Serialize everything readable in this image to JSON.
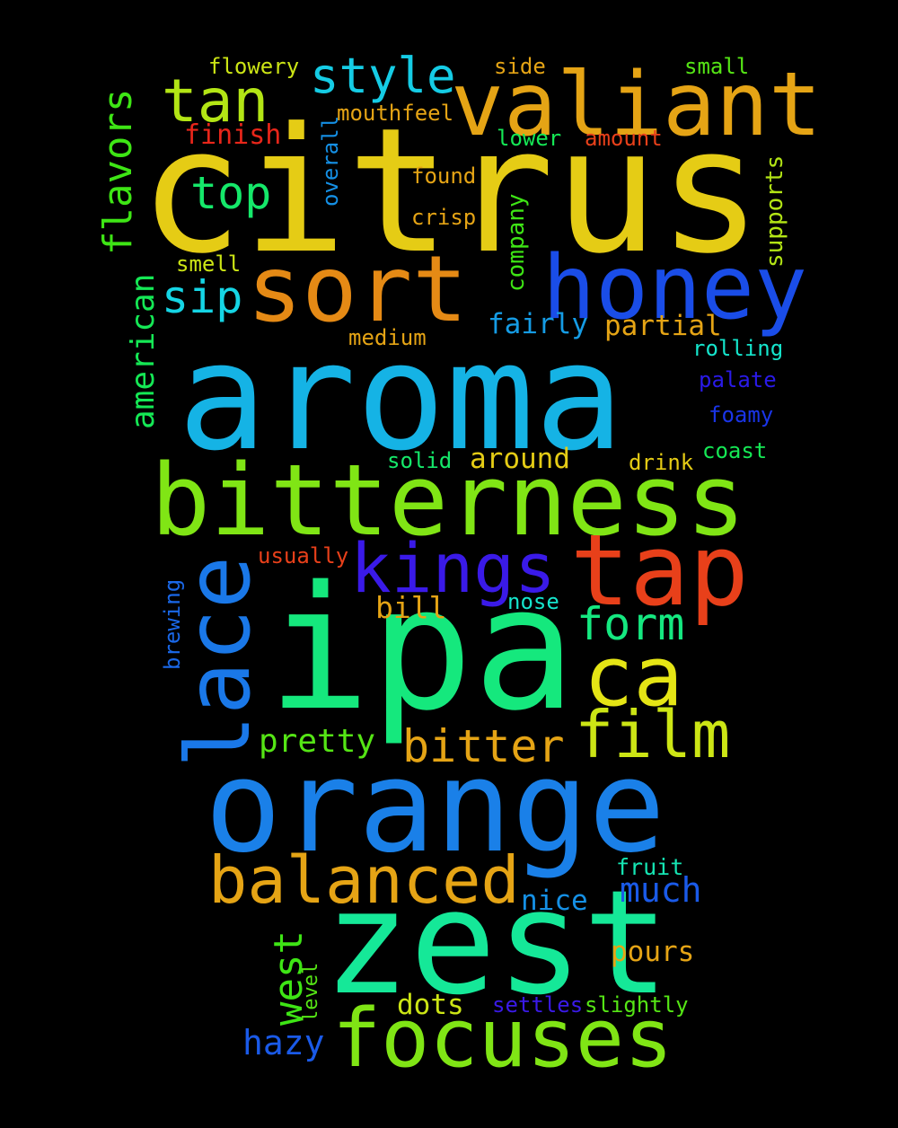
{
  "words": [
    {
      "text": "citrus",
      "color": "#e5cc15"
    },
    {
      "text": "aroma",
      "color": "#15b3e5"
    },
    {
      "text": "ipa",
      "color": "#15e87d"
    },
    {
      "text": "orange",
      "color": "#1a80e8"
    },
    {
      "text": "zest",
      "color": "#15e898"
    },
    {
      "text": "bitterness",
      "color": "#80e515"
    },
    {
      "text": "valiant",
      "color": "#e5a415"
    },
    {
      "text": "honey",
      "color": "#1a4de8"
    },
    {
      "text": "sort",
      "color": "#e58a15"
    },
    {
      "text": "tap",
      "color": "#e8401a"
    },
    {
      "text": "focuses",
      "color": "#80e515"
    },
    {
      "text": "lace",
      "color": "#1a78e8"
    },
    {
      "text": "kings",
      "color": "#3a1ae8"
    },
    {
      "text": "ca",
      "color": "#e5e515"
    },
    {
      "text": "film",
      "color": "#cce515"
    },
    {
      "text": "balanced",
      "color": "#e5a415"
    },
    {
      "text": "tan",
      "color": "#b3e515"
    },
    {
      "text": "style",
      "color": "#15cce5"
    },
    {
      "text": "bitter",
      "color": "#e5a415"
    },
    {
      "text": "top",
      "color": "#15e86a"
    },
    {
      "text": "form",
      "color": "#15e880"
    },
    {
      "text": "sip",
      "color": "#15d5e5"
    },
    {
      "text": "flavors",
      "color": "#3ee515"
    },
    {
      "text": "american",
      "color": "#15e855"
    },
    {
      "text": "west",
      "color": "#3ee515"
    },
    {
      "text": "much",
      "color": "#1a5ae8"
    },
    {
      "text": "hazy",
      "color": "#1a5ae8"
    },
    {
      "text": "pretty",
      "color": "#55e515"
    },
    {
      "text": "fairly",
      "color": "#159ce5"
    },
    {
      "text": "partial",
      "color": "#e5a415"
    },
    {
      "text": "around",
      "color": "#e5cc15"
    },
    {
      "text": "bill",
      "color": "#e5a415"
    },
    {
      "text": "dots",
      "color": "#cce515"
    },
    {
      "text": "pours",
      "color": "#e5a415"
    },
    {
      "text": "nice",
      "color": "#1590e5"
    },
    {
      "text": "fruit",
      "color": "#15e5b3"
    },
    {
      "text": "supports",
      "color": "#b3e515"
    },
    {
      "text": "company",
      "color": "#3ee515"
    },
    {
      "text": "flowery",
      "color": "#cce515"
    },
    {
      "text": "mouthfeel",
      "color": "#e5a415"
    },
    {
      "text": "side",
      "color": "#e5a415"
    },
    {
      "text": "small",
      "color": "#55e515"
    },
    {
      "text": "finish",
      "color": "#e8261a"
    },
    {
      "text": "overall",
      "color": "#1590e5"
    },
    {
      "text": "lower",
      "color": "#15e855"
    },
    {
      "text": "amount",
      "color": "#e8401a"
    },
    {
      "text": "found",
      "color": "#e5a415"
    },
    {
      "text": "crisp",
      "color": "#e5a415"
    },
    {
      "text": "smell",
      "color": "#cce515"
    },
    {
      "text": "medium",
      "color": "#e5a415"
    },
    {
      "text": "rolling",
      "color": "#15e5cc"
    },
    {
      "text": "palate",
      "color": "#2a1ae8"
    },
    {
      "text": "foamy",
      "color": "#1a35e8"
    },
    {
      "text": "coast",
      "color": "#15e855"
    },
    {
      "text": "solid",
      "color": "#15e86a"
    },
    {
      "text": "drink",
      "color": "#e5cc15"
    },
    {
      "text": "usually",
      "color": "#e8401a"
    },
    {
      "text": "nose",
      "color": "#15e5cc"
    },
    {
      "text": "brewing",
      "color": "#1a68e8"
    },
    {
      "text": "level",
      "color": "#55e515"
    },
    {
      "text": "settles",
      "color": "#3a1ae8"
    },
    {
      "text": "slightly",
      "color": "#55e515"
    }
  ]
}
